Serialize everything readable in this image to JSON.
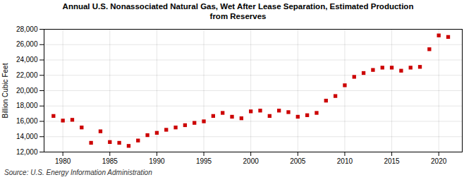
{
  "chart_data": {
    "type": "scatter",
    "title": "Annual U.S. Nonassociated Natural Gas, Wet After Lease Separation, Estimated Production\nfrom Reserves",
    "ylabel": "Billion Cubic Feet",
    "source": "Source: U.S. Energy Information Administration",
    "color": "#cc0000",
    "marker": "square",
    "grid": true,
    "xlim": [
      1978,
      2022.5
    ],
    "xticks": [
      1980,
      1985,
      1990,
      1995,
      2000,
      2005,
      2010,
      2015,
      2020
    ],
    "ylim": [
      12000,
      28000
    ],
    "yticks": [
      {
        "value": 12000,
        "label": "12,000"
      },
      {
        "value": 14000,
        "label": "14,000"
      },
      {
        "value": 16000,
        "label": "16,000"
      },
      {
        "value": 18000,
        "label": "18,000"
      },
      {
        "value": 20000,
        "label": "20,000"
      },
      {
        "value": 22000,
        "label": "22,000"
      },
      {
        "value": 24000,
        "label": "24,000"
      },
      {
        "value": 26000,
        "label": "26,000"
      },
      {
        "value": 28000,
        "label": "28,000"
      }
    ],
    "x": [
      1979,
      1980,
      1981,
      1982,
      1983,
      1984,
      1985,
      1986,
      1987,
      1988,
      1989,
      1990,
      1991,
      1992,
      1993,
      1994,
      1995,
      1996,
      1997,
      1998,
      1999,
      2000,
      2001,
      2002,
      2003,
      2004,
      2005,
      2006,
      2007,
      2008,
      2009,
      2010,
      2011,
      2012,
      2013,
      2014,
      2015,
      2016,
      2017,
      2018,
      2019,
      2020,
      2021
    ],
    "values": [
      16700,
      16100,
      16200,
      15200,
      13200,
      14700,
      13300,
      13200,
      12800,
      13500,
      14200,
      14500,
      14900,
      15200,
      15500,
      15800,
      16000,
      16700,
      17100,
      16600,
      16400,
      17300,
      17400,
      16700,
      17400,
      17200,
      16600,
      16800,
      17100,
      18700,
      19300,
      20700,
      21800,
      22300,
      22700,
      23000,
      23000,
      22600,
      23000,
      23100,
      25400,
      27200,
      27000
    ]
  }
}
